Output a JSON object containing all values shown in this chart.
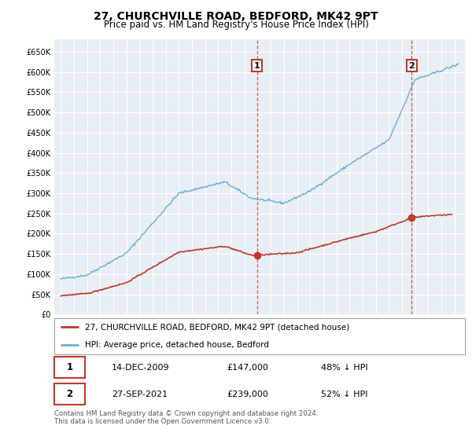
{
  "title": "27, CHURCHVILLE ROAD, BEDFORD, MK42 9PT",
  "subtitle": "Price paid vs. HM Land Registry's House Price Index (HPI)",
  "ylim": [
    0,
    680000
  ],
  "ytick_vals": [
    0,
    50000,
    100000,
    150000,
    200000,
    250000,
    300000,
    350000,
    400000,
    450000,
    500000,
    550000,
    600000,
    650000
  ],
  "xlim_start": 1994.5,
  "xlim_end": 2025.8,
  "hpi_color": "#6baed6",
  "price_color": "#c0392b",
  "vline1_x": 2009.96,
  "vline2_x": 2021.74,
  "marker1_x": 2009.96,
  "marker1_y": 147000,
  "marker2_x": 2021.74,
  "marker2_y": 239000,
  "legend_label1": "27, CHURCHVILLE ROAD, BEDFORD, MK42 9PT (detached house)",
  "legend_label2": "HPI: Average price, detached house, Bedford",
  "annotation1_label": "1",
  "annotation2_label": "2",
  "table_row1": [
    "1",
    "14-DEC-2009",
    "£147,000",
    "48% ↓ HPI"
  ],
  "table_row2": [
    "2",
    "27-SEP-2021",
    "£239,000",
    "52% ↓ HPI"
  ],
  "footer": "Contains HM Land Registry data © Crown copyright and database right 2024.\nThis data is licensed under the Open Government Licence v3.0.",
  "background_color": "#ffffff",
  "plot_bg_color": "#e8eef5"
}
